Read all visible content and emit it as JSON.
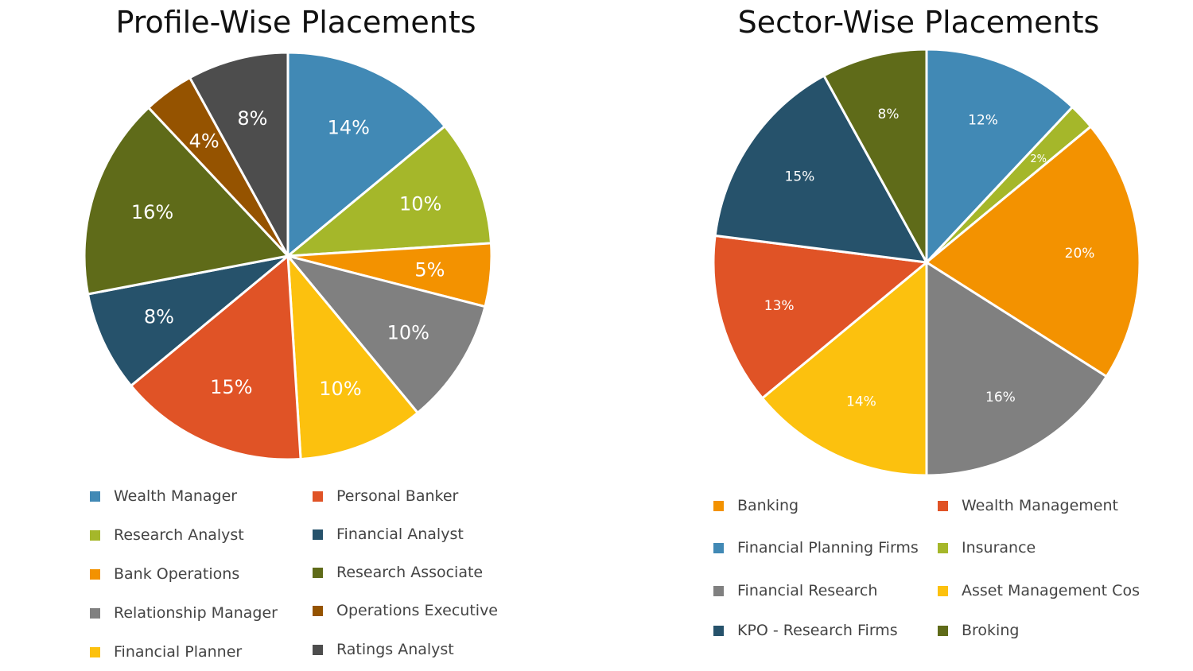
{
  "chart_data": [
    {
      "type": "pie",
      "title": "Profile-Wise Placements",
      "categories": [
        "Wealth Manager",
        "Research Analyst",
        "Bank Operations",
        "Relationship Manager",
        "Financial Planner",
        "Personal Banker",
        "Financial Analyst",
        "Research Associate",
        "Operations Executive",
        "Ratings Analyst"
      ],
      "values": [
        14,
        10,
        5,
        10,
        10,
        15,
        8,
        16,
        4,
        8
      ],
      "colors": [
        "#4189b5",
        "#a5b72a",
        "#f39200",
        "#808080",
        "#fcc10e",
        "#e05326",
        "#26526b",
        "#5f6b19",
        "#955300",
        "#4d4d4d"
      ],
      "unit": "%",
      "legend": [
        "Wealth Manager",
        "Research Analyst",
        "Bank Operations",
        "Relationship Manager",
        "Financial Planner",
        "Personal Banker",
        "Financial Analyst",
        "Research Associate",
        "Operations Executive",
        "Ratings Analyst"
      ],
      "legend_placement": "bottom"
    },
    {
      "type": "pie",
      "title": "Sector-Wise Placements",
      "categories": [
        "Financial Planning Firms",
        "Insurance",
        "Banking",
        "Financial Research",
        "Asset Management Cos",
        "Wealth Management",
        "KPO - Research Firms",
        "Broking"
      ],
      "values": [
        12,
        2,
        20,
        16,
        14,
        13,
        15,
        8
      ],
      "colors": [
        "#4189b5",
        "#a5b72a",
        "#f39200",
        "#808080",
        "#fcc10e",
        "#e05326",
        "#26526b",
        "#5f6b19"
      ],
      "unit": "%",
      "legend": [
        "Banking",
        "Wealth Management",
        "Financial Planning Firms",
        "Insurance",
        "Financial Research",
        "Asset Management Cos",
        "KPO - Research Firms",
        "Broking"
      ],
      "legend_placement": "bottom"
    }
  ]
}
